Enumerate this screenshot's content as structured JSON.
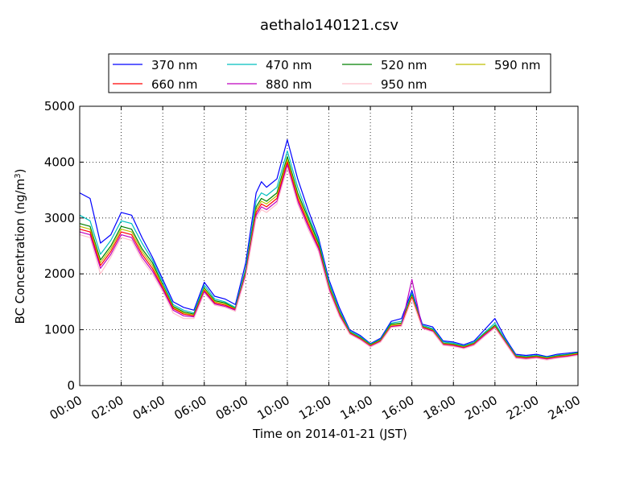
{
  "chart_data": {
    "type": "line",
    "title": "aethalo140121.csv",
    "xlabel": "Time on 2014-01-21 (JST)",
    "ylabel": "BC Concentration (ng/m",
    "ylabel_superscript": "3",
    "ylabel_suffix": ")",
    "xlim": [
      "00:00",
      "24:00"
    ],
    "ylim": [
      0,
      5000
    ],
    "x_ticks": [
      "00:00",
      "02:00",
      "04:00",
      "06:00",
      "08:00",
      "10:00",
      "12:00",
      "14:00",
      "16:00",
      "18:00",
      "20:00",
      "22:00",
      "24:00"
    ],
    "y_ticks": [
      0,
      1000,
      2000,
      3000,
      4000,
      5000
    ],
    "grid": true,
    "legend_position": "top",
    "x": [
      "00:00",
      "00:30",
      "01:00",
      "01:30",
      "02:00",
      "02:30",
      "03:00",
      "03:30",
      "04:00",
      "04:30",
      "05:00",
      "05:30",
      "06:00",
      "06:30",
      "07:00",
      "07:30",
      "08:00",
      "08:30",
      "08:45",
      "09:00",
      "09:30",
      "10:00",
      "10:30",
      "11:00",
      "11:30",
      "12:00",
      "12:30",
      "13:00",
      "13:30",
      "14:00",
      "14:30",
      "15:00",
      "15:30",
      "16:00",
      "16:30",
      "17:00",
      "17:30",
      "18:00",
      "18:30",
      "19:00",
      "19:30",
      "20:00",
      "20:30",
      "21:00",
      "21:30",
      "22:00",
      "22:30",
      "23:00",
      "23:30",
      "23:59"
    ],
    "series": [
      {
        "name": "370 nm",
        "color": "#0000ff",
        "values": [
          3450,
          3350,
          2550,
          2700,
          3100,
          3050,
          2650,
          2300,
          1900,
          1500,
          1400,
          1350,
          1850,
          1600,
          1550,
          1450,
          2200,
          3450,
          3650,
          3550,
          3700,
          4400,
          3700,
          3150,
          2650,
          1900,
          1400,
          1000,
          900,
          750,
          850,
          1150,
          1200,
          1700,
          1100,
          1050,
          800,
          780,
          730,
          800,
          1000,
          1200,
          850,
          560,
          540,
          560,
          520,
          560,
          580,
          600
        ]
      },
      {
        "name": "470 nm",
        "color": "#00bfbf",
        "values": [
          3050,
          2950,
          2350,
          2600,
          2950,
          2900,
          2550,
          2250,
          1850,
          1450,
          1350,
          1300,
          1800,
          1550,
          1500,
          1400,
          2100,
          3300,
          3450,
          3400,
          3550,
          4200,
          3550,
          3050,
          2600,
          1850,
          1350,
          980,
          880,
          740,
          830,
          1120,
          1150,
          1650,
          1080,
          1020,
          780,
          760,
          710,
          780,
          950,
          1120,
          820,
          540,
          520,
          540,
          510,
          540,
          560,
          590
        ]
      },
      {
        "name": "520 nm",
        "color": "#008000",
        "values": [
          2900,
          2850,
          2250,
          2500,
          2850,
          2800,
          2450,
          2200,
          1800,
          1420,
          1320,
          1280,
          1750,
          1520,
          1480,
          1380,
          2050,
          3200,
          3350,
          3300,
          3450,
          4100,
          3450,
          3000,
          2550,
          1800,
          1320,
          960,
          860,
          730,
          820,
          1100,
          1120,
          1620,
          1060,
          1000,
          760,
          740,
          700,
          760,
          930,
          1080,
          800,
          530,
          510,
          530,
          500,
          530,
          550,
          580
        ]
      },
      {
        "name": "590 nm",
        "color": "#bfbf00",
        "values": [
          2850,
          2800,
          2200,
          2450,
          2800,
          2750,
          2400,
          2150,
          1780,
          1400,
          1300,
          1260,
          1730,
          1500,
          1460,
          1370,
          2020,
          3150,
          3300,
          3250,
          3400,
          4050,
          3400,
          2950,
          2500,
          1780,
          1300,
          950,
          850,
          720,
          810,
          1080,
          1100,
          1600,
          1050,
          990,
          750,
          730,
          690,
          750,
          920,
          1060,
          790,
          520,
          500,
          520,
          490,
          520,
          540,
          570
        ]
      },
      {
        "name": "660 nm",
        "color": "#ff0000",
        "values": [
          2800,
          2750,
          2150,
          2400,
          2750,
          2700,
          2350,
          2100,
          1750,
          1380,
          1280,
          1250,
          1700,
          1480,
          1440,
          1360,
          2000,
          3100,
          3250,
          3200,
          3350,
          4000,
          3350,
          2900,
          2480,
          1750,
          1280,
          940,
          840,
          710,
          800,
          1060,
          1080,
          1580,
          1040,
          980,
          740,
          720,
          680,
          740,
          910,
          1050,
          780,
          510,
          490,
          510,
          480,
          510,
          530,
          560
        ]
      },
      {
        "name": "880 nm",
        "color": "#bf00bf",
        "values": [
          2750,
          2700,
          2100,
          2350,
          2700,
          2650,
          2300,
          2050,
          1720,
          1350,
          1250,
          1230,
          1680,
          1460,
          1420,
          1350,
          1980,
          3050,
          3200,
          3150,
          3300,
          3950,
          3300,
          2850,
          2450,
          1730,
          1260,
          930,
          830,
          700,
          790,
          1050,
          1070,
          1900,
          1030,
          970,
          730,
          710,
          670,
          730,
          900,
          1040,
          770,
          500,
          480,
          500,
          470,
          500,
          520,
          550
        ]
      },
      {
        "name": "950 nm",
        "color": "#ffc0cb",
        "values": [
          2700,
          2650,
          2000,
          2300,
          2650,
          2600,
          2250,
          2000,
          1680,
          1300,
          1200,
          1200,
          1650,
          1440,
          1400,
          1330,
          1950,
          3000,
          3150,
          3100,
          3250,
          3900,
          3250,
          2800,
          2400,
          1700,
          1240,
          920,
          820,
          690,
          780,
          1040,
          1060,
          1550,
          1020,
          960,
          720,
          700,
          660,
          720,
          880,
          1030,
          760,
          490,
          470,
          490,
          460,
          490,
          510,
          540
        ]
      }
    ]
  }
}
